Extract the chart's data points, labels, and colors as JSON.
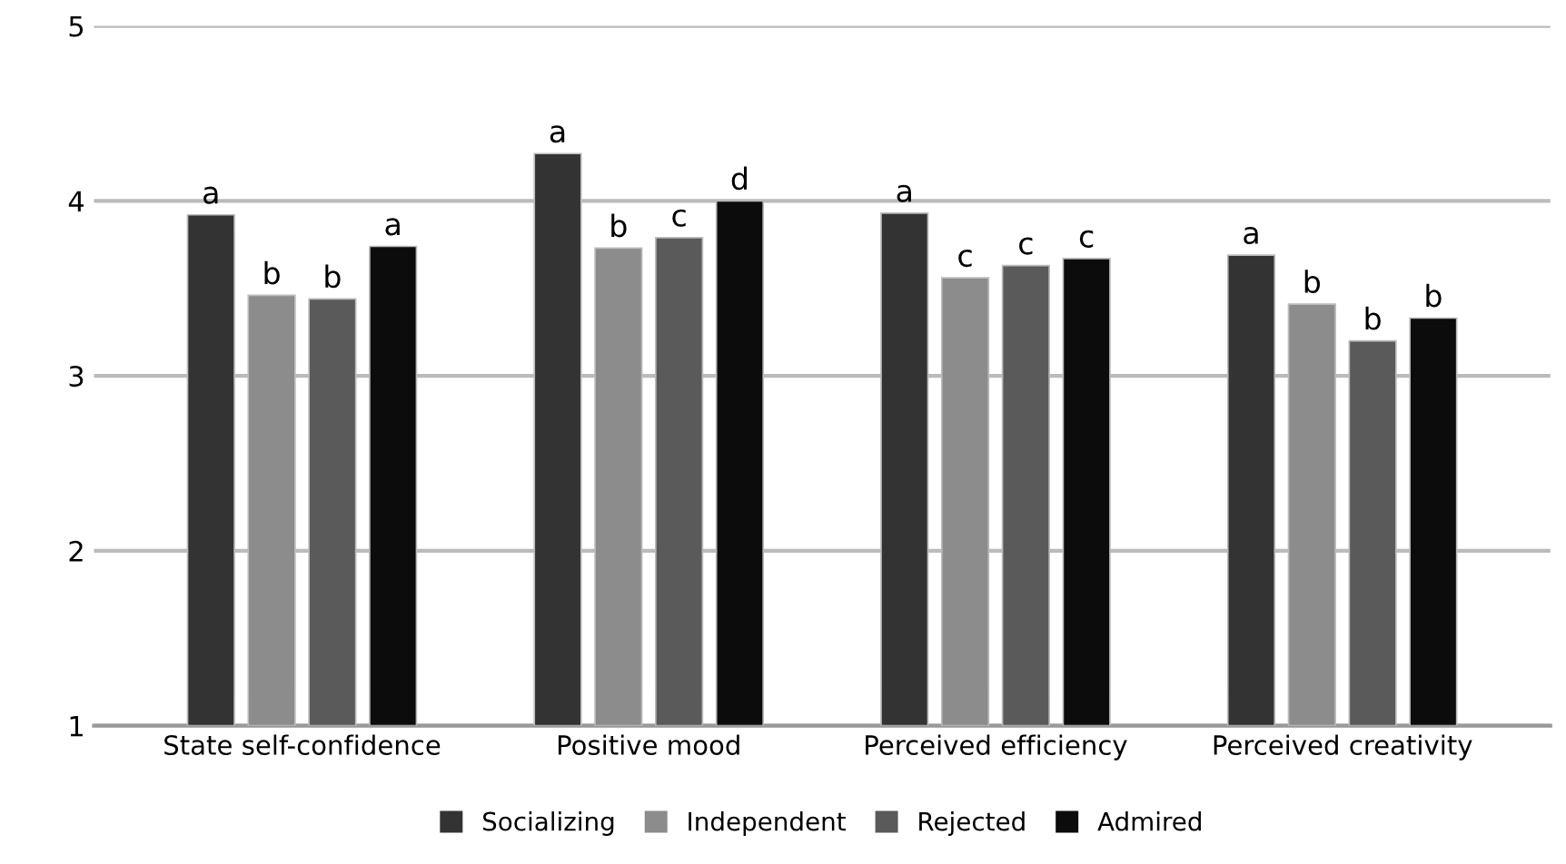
{
  "chart_data": {
    "type": "bar",
    "categories": [
      "State self-confidence",
      "Positive mood",
      "Perceived efficiency",
      "Perceived creativity"
    ],
    "series": [
      {
        "name": "Socializing",
        "color": "#333333",
        "values": [
          3.92,
          4.27,
          3.93,
          3.69
        ],
        "value_labels": [
          "a",
          "a",
          "a",
          "a"
        ]
      },
      {
        "name": "Independent",
        "color": "#8c8c8c",
        "values": [
          3.46,
          3.73,
          3.56,
          3.41
        ],
        "value_labels": [
          "b",
          "b",
          "c",
          "b"
        ]
      },
      {
        "name": "Rejected",
        "color": "#5a5a5a",
        "values": [
          3.44,
          3.79,
          3.63,
          3.2
        ],
        "value_labels": [
          "b",
          "c",
          "c",
          "b"
        ]
      },
      {
        "name": "Admired",
        "color": "#0c0c0c",
        "values": [
          3.74,
          4.0,
          3.67,
          3.33
        ],
        "value_labels": [
          "a",
          "d",
          "c",
          "b"
        ]
      }
    ],
    "ylim": [
      1,
      5
    ],
    "yticks": [
      1,
      2,
      3,
      4,
      5
    ],
    "grid": "y",
    "legend": "bottom"
  }
}
